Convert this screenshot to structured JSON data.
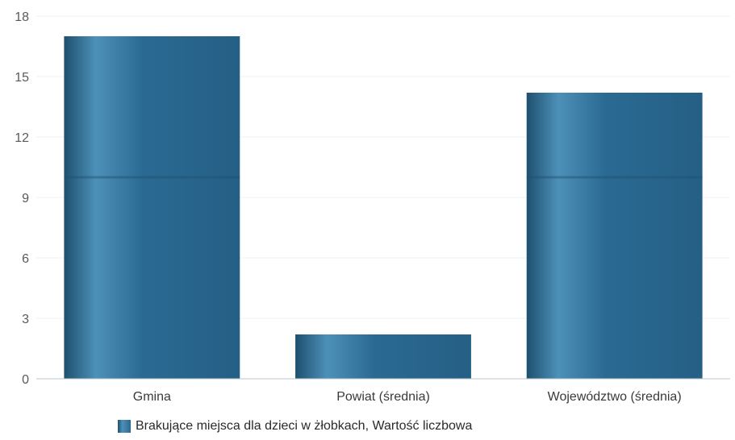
{
  "chart_data": {
    "type": "bar",
    "categories": [
      "Gmina",
      "Powiat (średnia)",
      "Województwo (średnia)"
    ],
    "series": [
      {
        "name": "Brakujące miejsca dla dzieci w żłobkach, Wartość liczbowa",
        "values": [
          17,
          2.2,
          14.2
        ]
      }
    ],
    "ylim": [
      0,
      18
    ],
    "yticks": [
      0,
      3,
      6,
      9,
      12,
      15,
      18
    ],
    "grid": true,
    "legend_position": "bottom",
    "bar_color": "#2a6a92",
    "bar_highlight": "#4d90b8",
    "bar_shadow": "#1e506f",
    "tick_color": "#5a5a5a",
    "axis_color": "#b8c4cc",
    "grid_color": "#eef2f4"
  }
}
